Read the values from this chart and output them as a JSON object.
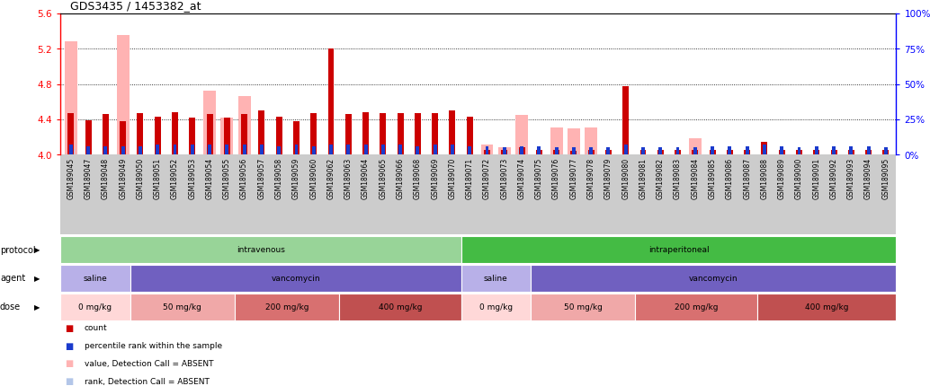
{
  "title": "GDS3435 / 1453382_at",
  "samples": [
    "GSM189045",
    "GSM189047",
    "GSM189048",
    "GSM189049",
    "GSM189050",
    "GSM189051",
    "GSM189052",
    "GSM189053",
    "GSM189054",
    "GSM189055",
    "GSM189056",
    "GSM189057",
    "GSM189058",
    "GSM189059",
    "GSM189060",
    "GSM189062",
    "GSM189063",
    "GSM189064",
    "GSM189065",
    "GSM189066",
    "GSM189068",
    "GSM189069",
    "GSM189070",
    "GSM189071",
    "GSM189072",
    "GSM189073",
    "GSM189074",
    "GSM189075",
    "GSM189076",
    "GSM189077",
    "GSM189078",
    "GSM189079",
    "GSM189080",
    "GSM189081",
    "GSM189082",
    "GSM189083",
    "GSM189084",
    "GSM189085",
    "GSM189086",
    "GSM189087",
    "GSM189088",
    "GSM189089",
    "GSM189090",
    "GSM189091",
    "GSM189092",
    "GSM189093",
    "GSM189094",
    "GSM189095"
  ],
  "value_present": [
    4.47,
    4.39,
    4.46,
    4.38,
    4.47,
    4.43,
    4.48,
    4.42,
    4.46,
    4.42,
    4.46,
    4.5,
    4.43,
    4.38,
    4.47,
    5.2,
    4.46,
    4.48,
    4.47,
    4.47,
    4.47,
    4.47,
    4.5,
    4.43,
    4.05,
    4.05,
    4.08,
    4.05,
    4.05,
    4.04,
    4.05,
    4.05,
    4.78,
    4.05,
    4.05,
    4.05,
    4.05,
    4.05,
    4.05,
    4.05,
    4.15,
    4.05,
    4.05,
    4.05,
    4.05,
    4.05,
    4.05,
    4.05
  ],
  "value_absent": [
    5.28,
    0,
    0,
    5.35,
    0,
    0,
    0,
    0,
    4.72,
    4.42,
    4.66,
    0,
    0,
    0,
    0,
    0,
    0,
    0,
    0,
    0,
    0,
    0,
    0,
    0,
    4.12,
    4.08,
    4.45,
    0,
    4.31,
    4.3,
    4.31,
    0,
    0,
    0,
    0,
    0,
    4.19,
    0,
    0,
    0,
    0,
    0,
    0,
    0,
    0,
    0,
    0,
    0
  ],
  "rank_present": [
    7,
    6,
    6,
    6,
    6,
    7,
    7,
    7,
    7,
    7,
    7,
    7,
    6,
    7,
    6,
    7,
    7,
    7,
    7,
    7,
    6,
    7,
    7,
    6,
    6,
    5,
    6,
    6,
    5,
    5,
    5,
    5,
    7,
    5,
    5,
    5,
    5,
    6,
    6,
    6,
    7,
    6,
    5,
    6,
    6,
    6,
    6,
    5
  ],
  "rank_absent": [
    4,
    0,
    0,
    4,
    0,
    0,
    0,
    0,
    5,
    5,
    5,
    0,
    0,
    0,
    0,
    0,
    0,
    0,
    0,
    0,
    0,
    0,
    0,
    0,
    3,
    3,
    4,
    0,
    3,
    3,
    3,
    0,
    0,
    0,
    0,
    0,
    3,
    0,
    0,
    0,
    0,
    0,
    0,
    0,
    0,
    0,
    0,
    0
  ],
  "ylim": [
    4.0,
    5.6
  ],
  "yticks_left": [
    4.0,
    4.4,
    4.8,
    5.2,
    5.6
  ],
  "yticks_right": [
    0,
    25,
    50,
    75,
    100
  ],
  "baseline": 4.0,
  "yrange": 1.6,
  "color_dark_red": "#cc0000",
  "color_blue": "#1a3acc",
  "color_pink": "#ffb3b3",
  "color_light_blue": "#b3c6e8",
  "row_label_bg": "#cccccc",
  "protocol_spans": [
    {
      "label": "intravenous",
      "start": 0,
      "end": 23,
      "color": "#98d498"
    },
    {
      "label": "intraperitoneal",
      "start": 23,
      "end": 48,
      "color": "#44bb44"
    }
  ],
  "agent_spans": [
    {
      "label": "saline",
      "start": 0,
      "end": 4,
      "color": "#b8b0e8"
    },
    {
      "label": "vancomycin",
      "start": 4,
      "end": 23,
      "color": "#7060c0"
    },
    {
      "label": "saline",
      "start": 23,
      "end": 27,
      "color": "#b8b0e8"
    },
    {
      "label": "vancomycin",
      "start": 27,
      "end": 48,
      "color": "#7060c0"
    }
  ],
  "dose_spans": [
    {
      "label": "0 mg/kg",
      "start": 0,
      "end": 4,
      "color": "#ffd8d8"
    },
    {
      "label": "50 mg/kg",
      "start": 4,
      "end": 10,
      "color": "#f0a8a8"
    },
    {
      "label": "200 mg/kg",
      "start": 10,
      "end": 16,
      "color": "#d87070"
    },
    {
      "label": "400 mg/kg",
      "start": 16,
      "end": 23,
      "color": "#c05050"
    },
    {
      "label": "0 mg/kg",
      "start": 23,
      "end": 27,
      "color": "#ffd8d8"
    },
    {
      "label": "50 mg/kg",
      "start": 27,
      "end": 33,
      "color": "#f0a8a8"
    },
    {
      "label": "200 mg/kg",
      "start": 33,
      "end": 40,
      "color": "#d87070"
    },
    {
      "label": "400 mg/kg",
      "start": 40,
      "end": 48,
      "color": "#c05050"
    }
  ]
}
